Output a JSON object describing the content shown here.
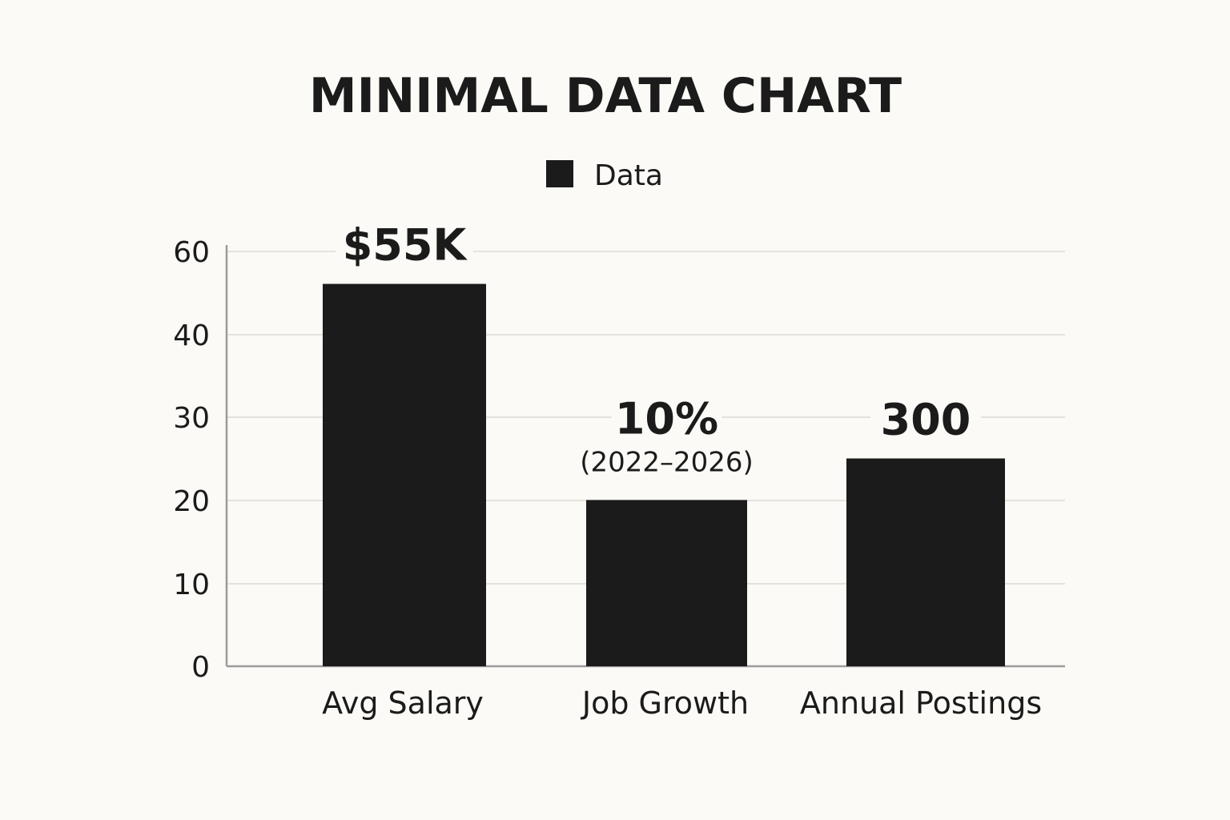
{
  "chart_data": {
    "type": "bar",
    "title": "MINIMAL DATA CHART",
    "xlabel": "",
    "ylabel": "",
    "categories": [
      "Avg Salary",
      "Job Growth",
      "Annual Postings"
    ],
    "series": [
      {
        "name": "Data",
        "values": [
          46,
          20,
          25
        ],
        "color": "#1b1b1b"
      }
    ],
    "data_labels": [
      "$55K",
      "10%",
      "300"
    ],
    "data_sublabels": [
      "",
      "(2022–2026)",
      ""
    ],
    "yticks": [
      0,
      10,
      20,
      30,
      40,
      60
    ],
    "ylim": [
      0,
      50
    ],
    "grid": true,
    "legend_position": "top-center",
    "colors": {
      "background": "#fbfaf6",
      "bar": "#1b1b1b",
      "grid": "#e3e2dc",
      "axis": "#9b9b9b",
      "text": "#1b1b1b"
    }
  }
}
